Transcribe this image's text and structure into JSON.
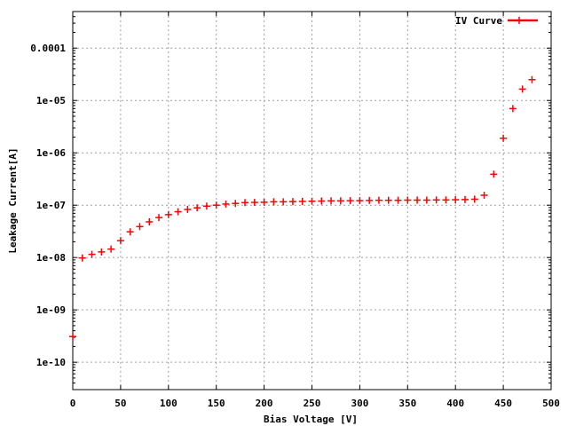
{
  "chart_data": {
    "type": "scatter",
    "title": "",
    "xlabel": "Bias Voltage [V]",
    "ylabel": "Leakage Current[A]",
    "xlim": [
      0,
      500
    ],
    "ylim": [
      3e-11,
      0.0005
    ],
    "yscale": "log",
    "grid": true,
    "legend_position": "top-right",
    "x_ticks": [
      "0",
      "50",
      "100",
      "150",
      "200",
      "250",
      "300",
      "350",
      "400",
      "450",
      "500"
    ],
    "y_ticks": [
      "1e-10",
      "1e-09",
      "1e-08",
      "1e-07",
      "1e-06",
      "1e-05",
      "0.0001"
    ],
    "series": [
      {
        "name": "IV Curve",
        "color": "#ff0000",
        "marker": "plus",
        "x": [
          0,
          10,
          20,
          30,
          40,
          50,
          60,
          70,
          80,
          90,
          100,
          110,
          120,
          130,
          140,
          150,
          160,
          170,
          180,
          190,
          200,
          210,
          220,
          230,
          240,
          250,
          260,
          270,
          280,
          290,
          300,
          310,
          320,
          330,
          340,
          350,
          360,
          370,
          380,
          390,
          400,
          410,
          420,
          430,
          440,
          450,
          460,
          470,
          480
        ],
        "y": [
          3.1e-10,
          9.8e-09,
          1.15e-08,
          1.28e-08,
          1.45e-08,
          2.1e-08,
          3.1e-08,
          3.9e-08,
          4.8e-08,
          5.8e-08,
          6.6e-08,
          7.5e-08,
          8.3e-08,
          8.9e-08,
          9.6e-08,
          1e-07,
          1.05e-07,
          1.08e-07,
          1.12e-07,
          1.13e-07,
          1.14e-07,
          1.16e-07,
          1.16e-07,
          1.17e-07,
          1.18e-07,
          1.19e-07,
          1.2e-07,
          1.21e-07,
          1.21e-07,
          1.22e-07,
          1.22e-07,
          1.23e-07,
          1.24e-07,
          1.24e-07,
          1.24e-07,
          1.25e-07,
          1.25e-07,
          1.25e-07,
          1.26e-07,
          1.26e-07,
          1.27e-07,
          1.28e-07,
          1.3e-07,
          1.55e-07,
          3.9e-07,
          1.9e-06,
          7e-06,
          1.65e-05,
          2.5e-05
        ]
      }
    ]
  }
}
